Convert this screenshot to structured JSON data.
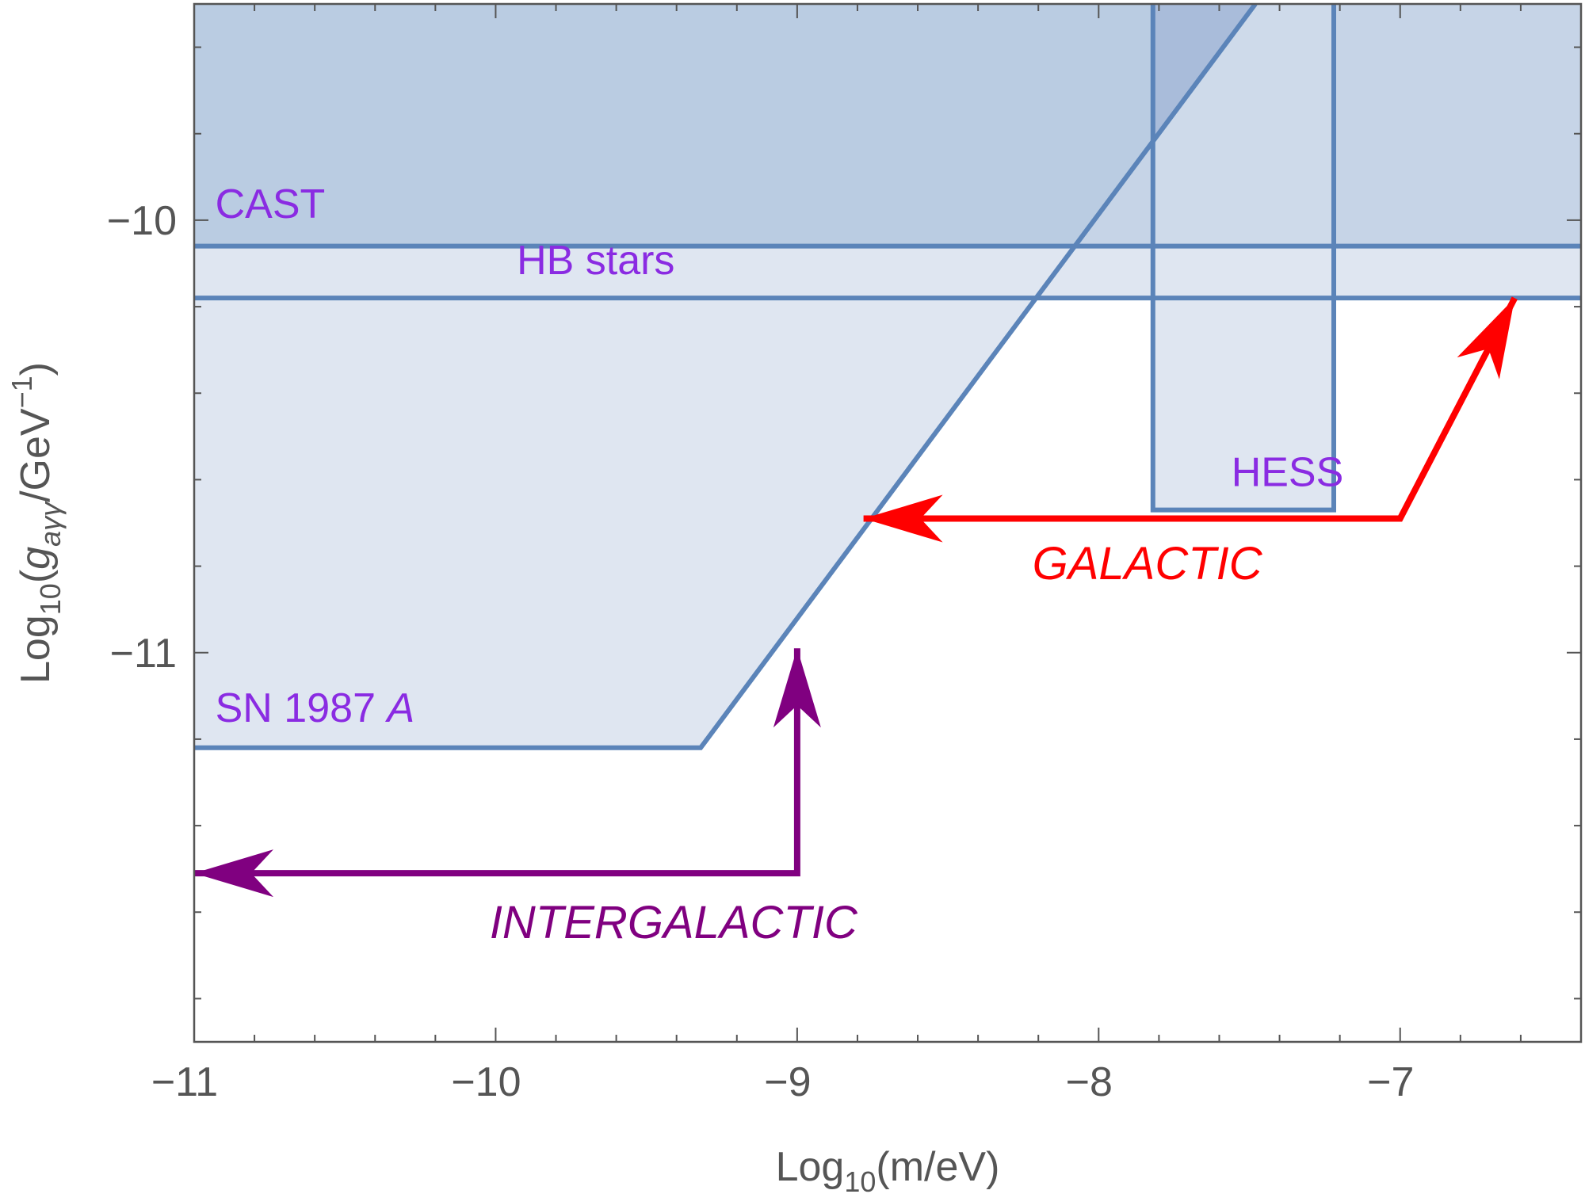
{
  "chart_data": {
    "type": "area",
    "title": "",
    "xlabel": {
      "base": "Log",
      "sub": "10",
      "rest": "(m/eV)"
    },
    "ylabel": {
      "base": "Log",
      "sub": "10",
      "open": "(",
      "g": "g",
      "gsub": "aγγ",
      "unit": "/GeV",
      "sup": "−1",
      "close": ")"
    },
    "xlim": [
      -11,
      -6.4
    ],
    "ylim": [
      -11.9,
      -9.5
    ],
    "x_ticks": [
      -11,
      -10,
      -9,
      -8,
      -7
    ],
    "x_tick_labels": [
      "−11",
      "−10",
      "−9",
      "−8",
      "−7"
    ],
    "y_ticks": [
      -11,
      -10
    ],
    "y_tick_labels": [
      "−11",
      "−10"
    ],
    "grid": false,
    "colors": {
      "region_fill": "#b0c4de",
      "region_fill_dark": "#9bb0d3",
      "region_fill_light": "#dfe6f1",
      "region_line": "#5b84b9",
      "label": "#8a2be2",
      "galactic": "#ff0000",
      "intergalactic": "#800080",
      "axis": "#555555"
    },
    "regions": [
      {
        "name": "CAST",
        "label": "CAST",
        "boundary_y": -10.06,
        "label_at": [
          -10.93,
          -9.995
        ]
      },
      {
        "name": "HB stars",
        "label": "HB stars",
        "boundary_y": -10.18,
        "label_at": [
          -9.93,
          -10.125
        ]
      },
      {
        "name": "SN 1987 A",
        "label_main": "SN 1987 ",
        "label_italic": "A",
        "boundary": [
          [
            -11,
            -11.22
          ],
          [
            -9.32,
            -11.22
          ],
          [
            -7.48,
            -9.5
          ]
        ],
        "label_at": [
          -10.93,
          -11.16
        ]
      },
      {
        "name": "HESS",
        "label": "HESS",
        "boundary": [
          [
            -7.82,
            -9.5
          ],
          [
            -7.82,
            -10.67
          ],
          [
            -7.22,
            -10.67
          ],
          [
            -7.22,
            -9.5
          ]
        ],
        "label_at": [
          -7.56,
          -10.615
        ]
      }
    ],
    "arrows": [
      {
        "name": "GALACTIC",
        "label": "GALACTIC",
        "color": "galactic",
        "path": [
          [
            -6.62,
            -10.18
          ],
          [
            -7.0,
            -10.69
          ],
          [
            -8.78,
            -10.69
          ]
        ],
        "label_at": [
          -8.22,
          -10.83
        ]
      },
      {
        "name": "INTERGALACTIC",
        "label": "INTERGALACTIC",
        "color": "intergalactic",
        "path": [
          [
            -9.0,
            -10.99
          ],
          [
            -9.0,
            -11.51
          ],
          [
            -11.0,
            -11.51
          ]
        ],
        "label_at": [
          -10.02,
          -11.66
        ]
      }
    ]
  }
}
